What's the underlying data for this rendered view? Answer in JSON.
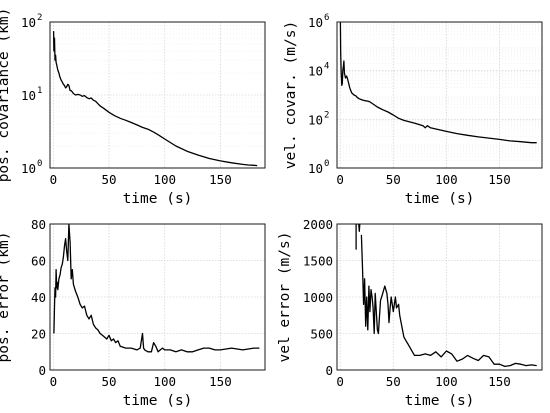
{
  "chart_data": [
    {
      "id": "pos-covariance",
      "type": "line",
      "xlabel": "time (s)",
      "ylabel": "pos. covariance (km)",
      "yscale": "log",
      "xlim": [
        -3,
        190
      ],
      "ylim": [
        1,
        100
      ],
      "xticks": [
        0,
        50,
        100,
        150
      ],
      "xtick_labels": [
        "0",
        "50",
        "100",
        "150"
      ],
      "yticks": [
        1,
        10,
        100
      ],
      "ytick_labels": [
        {
          "base": "10",
          "exp": "0"
        },
        {
          "base": "10",
          "exp": "1"
        },
        {
          "base": "10",
          "exp": "2"
        }
      ],
      "grid": true,
      "series": [
        {
          "x": [
            0.2,
            0.5,
            1,
            1.5,
            2,
            2.5,
            3,
            4,
            5,
            6,
            7,
            8,
            9,
            10,
            11,
            12,
            13,
            14,
            15,
            16,
            17,
            18,
            20,
            22,
            24,
            26,
            28,
            30,
            32,
            34,
            36,
            38,
            40,
            42,
            45,
            50,
            55,
            60,
            65,
            70,
            75,
            80,
            85,
            90,
            95,
            100,
            110,
            120,
            130,
            140,
            150,
            160,
            170,
            175,
            180,
            183
          ],
          "y": [
            75,
            40,
            60,
            30,
            35,
            28,
            26,
            22,
            20,
            17.5,
            16,
            15,
            14,
            13.5,
            12.5,
            13,
            14,
            13.5,
            11.5,
            11.5,
            11,
            10.5,
            10,
            10.2,
            10,
            9.6,
            9.8,
            9.2,
            8.9,
            9.1,
            8.5,
            8.2,
            7.6,
            7.1,
            6.6,
            5.8,
            5.2,
            4.8,
            4.5,
            4.2,
            3.9,
            3.6,
            3.4,
            3.1,
            2.8,
            2.5,
            2.0,
            1.7,
            1.5,
            1.35,
            1.25,
            1.18,
            1.12,
            1.1,
            1.09,
            1.08
          ]
        }
      ]
    },
    {
      "id": "vel-covariance",
      "type": "line",
      "xlabel": "time (s)",
      "ylabel": "vel. covar. (m/s)",
      "yscale": "log",
      "xlim": [
        -3,
        190
      ],
      "ylim": [
        1,
        1000000
      ],
      "xticks": [
        0,
        50,
        100,
        150
      ],
      "xtick_labels": [
        "0",
        "50",
        "100",
        "150"
      ],
      "yticks": [
        1,
        100,
        10000,
        1000000
      ],
      "ytick_labels": [
        {
          "base": "10",
          "exp": "0"
        },
        {
          "base": "10",
          "exp": "2"
        },
        {
          "base": "10",
          "exp": "4"
        },
        {
          "base": "10",
          "exp": "6"
        }
      ],
      "grid": true,
      "series": [
        {
          "x": [
            0.2,
            0.5,
            1,
            1.5,
            2,
            2.5,
            3,
            3.5,
            4,
            5,
            6,
            7,
            8,
            9,
            10,
            11,
            12,
            13,
            14,
            15,
            16,
            18,
            20,
            22,
            24,
            26,
            28,
            30,
            35,
            40,
            45,
            50,
            55,
            60,
            65,
            70,
            75,
            78,
            80,
            82,
            85,
            90,
            100,
            110,
            120,
            130,
            140,
            150,
            160,
            170,
            180,
            185
          ],
          "y": [
            1000000,
            50000,
            8000,
            2500,
            3000,
            10000,
            15000,
            25000,
            8000,
            5000,
            6000,
            4500,
            3000,
            2000,
            1500,
            1200,
            1100,
            1000,
            950,
            900,
            800,
            700,
            650,
            600,
            580,
            560,
            520,
            450,
            320,
            250,
            200,
            150,
            110,
            90,
            80,
            70,
            60,
            55,
            45,
            55,
            45,
            40,
            32,
            26,
            22,
            19,
            17,
            15,
            13,
            12,
            11,
            11
          ]
        }
      ]
    },
    {
      "id": "pos-error",
      "type": "line",
      "xlabel": "time (s)",
      "ylabel": "pos. error (km)",
      "yscale": "linear",
      "xlim": [
        -3,
        190
      ],
      "ylim": [
        0,
        80
      ],
      "xticks": [
        0,
        50,
        100,
        150
      ],
      "xtick_labels": [
        "0",
        "50",
        "100",
        "150"
      ],
      "yticks": [
        0,
        20,
        40,
        60,
        80
      ],
      "ytick_labels": [
        "0",
        "20",
        "40",
        "60",
        "80"
      ],
      "grid": true,
      "series": [
        {
          "x": [
            0.5,
            1,
            1.5,
            2,
            2.5,
            3,
            3.5,
            4,
            5,
            6,
            7,
            8,
            9,
            10,
            11,
            12,
            13,
            14,
            15,
            16,
            17,
            18,
            19,
            20,
            22,
            24,
            26,
            28,
            30,
            32,
            34,
            36,
            38,
            40,
            42,
            44,
            46,
            48,
            50,
            52,
            54,
            56,
            58,
            60,
            65,
            70,
            75,
            78,
            80,
            81,
            82,
            85,
            88,
            90,
            92,
            94,
            96,
            98,
            100,
            105,
            110,
            115,
            120,
            125,
            130,
            135,
            140,
            145,
            150,
            160,
            170,
            180,
            185
          ],
          "y": [
            20,
            35,
            45,
            40,
            55,
            45,
            48,
            44,
            50,
            52,
            56,
            58,
            62,
            68,
            72,
            65,
            60,
            80,
            70,
            50,
            55,
            47,
            45,
            43,
            40,
            36,
            34,
            35,
            30,
            28,
            30,
            25,
            23,
            22,
            20,
            19,
            18,
            17,
            19,
            16,
            17,
            15,
            16,
            13,
            12,
            12,
            11,
            12,
            20,
            12,
            11,
            10,
            10,
            15,
            13,
            10,
            11,
            12,
            11,
            11,
            10,
            11,
            10,
            10,
            11,
            12,
            12,
            11,
            11,
            12,
            11,
            12,
            12
          ]
        }
      ]
    },
    {
      "id": "vel-error",
      "type": "line",
      "xlabel": "time (s)",
      "ylabel": "vel error (m/s)",
      "yscale": "linear",
      "xlim": [
        -3,
        190
      ],
      "ylim": [
        0,
        2000
      ],
      "xticks": [
        0,
        50,
        100,
        150
      ],
      "xtick_labels": [
        "0",
        "50",
        "100",
        "150"
      ],
      "yticks": [
        0,
        500,
        1000,
        1500,
        2000
      ],
      "ytick_labels": [
        "0",
        "500",
        "1000",
        "1500",
        "2000"
      ],
      "grid": true,
      "series": [
        {
          "x": [
            15,
            15,
            16,
            17,
            17.5,
            18,
            18.5,
            19
          ],
          "y": [
            1650,
            2000,
            2000,
            2000,
            2000,
            1900,
            2000,
            2000
          ]
        },
        {
          "x": [
            20,
            21,
            22,
            23,
            24,
            25,
            26,
            27,
            28,
            29,
            30,
            31,
            32,
            33,
            34,
            35,
            36,
            38,
            40,
            42,
            44,
            45,
            46,
            47,
            48,
            50,
            52,
            53,
            55,
            56,
            58,
            60,
            62,
            64,
            66,
            68,
            70,
            75,
            80,
            85,
            90,
            95,
            100,
            105,
            110,
            115,
            120,
            125,
            130,
            135,
            140,
            145,
            150,
            155,
            160,
            165,
            170,
            175,
            180,
            185
          ],
          "y": [
            1850,
            1400,
            900,
            1250,
            600,
            1000,
            550,
            1150,
            800,
            1100,
            1000,
            850,
            500,
            1050,
            800,
            550,
            500,
            950,
            1050,
            1150,
            1050,
            900,
            650,
            850,
            1000,
            800,
            1000,
            850,
            900,
            750,
            600,
            450,
            400,
            350,
            300,
            250,
            200,
            200,
            220,
            200,
            250,
            180,
            260,
            220,
            120,
            150,
            200,
            160,
            130,
            200,
            180,
            80,
            80,
            50,
            60,
            90,
            80,
            60,
            70,
            60
          ]
        }
      ]
    }
  ]
}
